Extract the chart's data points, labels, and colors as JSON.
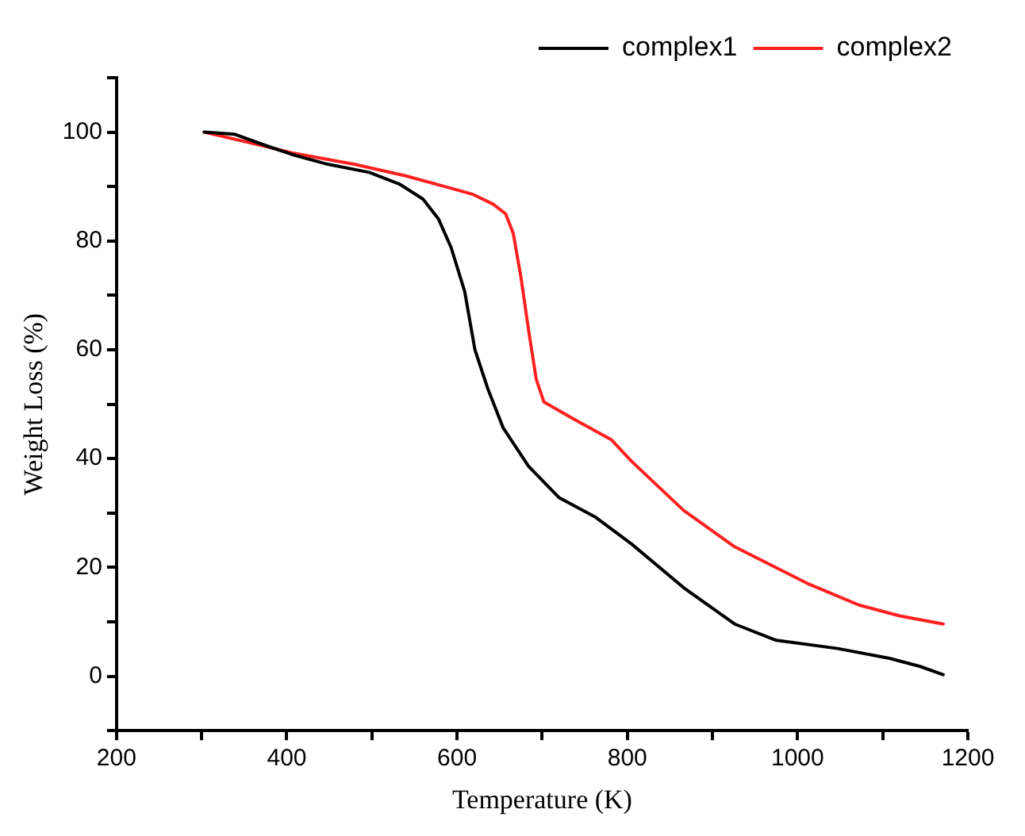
{
  "chart_data": {
    "type": "line",
    "xlabel": "Temperature (K)",
    "ylabel": "Weight Loss (%)",
    "xlim": [
      200,
      1200
    ],
    "xticks": [
      200,
      {
        "value": 300,
        "label": null
      },
      400,
      {
        "value": 500,
        "label": null
      },
      600,
      {
        "value": 700,
        "label": null
      },
      800,
      {
        "value": 900,
        "label": null
      },
      1000,
      {
        "value": 1100,
        "label": null
      },
      1200
    ],
    "ylim": [
      -10,
      110
    ],
    "yticks": [
      {
        "value": -10,
        "label": null
      },
      0,
      {
        "value": 10,
        "label": null
      },
      20,
      {
        "value": 30,
        "label": null
      },
      40,
      {
        "value": 50,
        "label": null
      },
      60,
      {
        "value": 70,
        "label": null
      },
      80,
      {
        "value": 90,
        "label": null
      },
      100,
      {
        "value": 110,
        "label": null
      }
    ],
    "grid": false,
    "legend": "top right",
    "marker": "none",
    "line_style": "solid",
    "series": [
      {
        "name": "complex1",
        "color": "#000000",
        "x": [
          303,
          339,
          376,
          406,
          448,
          497,
          533,
          560,
          578,
          593,
          609,
          621,
          636,
          654,
          684,
          720,
          763,
          805,
          866,
          926,
          975,
          1047,
          1108,
          1144,
          1171
        ],
        "values": [
          100,
          99.6,
          97.5,
          95.9,
          94.1,
          92.6,
          90.4,
          87.7,
          84.1,
          78.8,
          70.7,
          60,
          52.9,
          45.7,
          38.6,
          32.8,
          29.2,
          24.3,
          16.3,
          9.6,
          6.6,
          5.1,
          3.3,
          1.8,
          0.3
        ]
      },
      {
        "name": "complex2",
        "color": "#ff2020",
        "x": [
          303,
          358,
          406,
          479,
          539,
          588,
          618,
          642,
          657,
          666,
          675,
          684,
          693,
          702,
          739,
          781,
          805,
          866,
          926,
          1011,
          1072,
          1120,
          1171
        ],
        "values": [
          100,
          98,
          96.2,
          94.1,
          92,
          89.9,
          88.6,
          86.8,
          85,
          81.4,
          73.4,
          63.6,
          54.6,
          50.4,
          47.1,
          43.5,
          39.5,
          30.5,
          23.8,
          17.1,
          13.1,
          11.1,
          9.6
        ]
      }
    ]
  }
}
